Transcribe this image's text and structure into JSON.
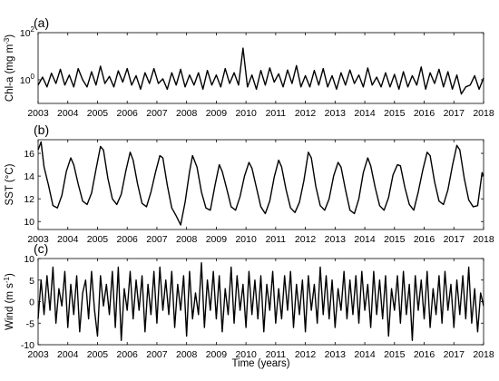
{
  "xlabel": "Time (years)",
  "chart_data": [
    {
      "type": "line",
      "panel_label": "(a)",
      "ylabel_main": "Chl-a (mg m",
      "ylabel_sup": "-3",
      "ylabel_close": ")",
      "yscale": "log",
      "ylim": [
        0.1,
        100
      ],
      "yticks": [
        {
          "value": 100,
          "base": "10",
          "exp": "2"
        },
        {
          "value": 1,
          "base": "10",
          "exp": "0"
        }
      ],
      "xlim": [
        2003.0,
        2018.0
      ],
      "xticks": [
        "2003",
        "2004",
        "2005",
        "2006",
        "2007",
        "2008",
        "2009",
        "2010",
        "2011",
        "2012",
        "2013",
        "2014",
        "2015",
        "2016",
        "2017",
        "2018"
      ],
      "series": [
        {
          "color": "#000000",
          "x": [
            2003.0,
            2003.15,
            2003.3,
            2003.45,
            2003.6,
            2003.75,
            2003.9,
            2004.05,
            2004.2,
            2004.35,
            2004.5,
            2004.65,
            2004.8,
            2004.95,
            2005.1,
            2005.25,
            2005.4,
            2005.55,
            2005.7,
            2005.85,
            2006.0,
            2006.15,
            2006.3,
            2006.45,
            2006.6,
            2006.75,
            2006.9,
            2007.05,
            2007.2,
            2007.35,
            2007.5,
            2007.65,
            2007.8,
            2007.95,
            2008.1,
            2008.25,
            2008.4,
            2008.55,
            2008.7,
            2008.85,
            2009.0,
            2009.15,
            2009.3,
            2009.45,
            2009.6,
            2009.75,
            2009.9,
            2010.05,
            2010.2,
            2010.35,
            2010.5,
            2010.65,
            2010.8,
            2010.95,
            2011.1,
            2011.25,
            2011.4,
            2011.55,
            2011.7,
            2011.85,
            2012.0,
            2012.15,
            2012.3,
            2012.45,
            2012.6,
            2012.75,
            2012.9,
            2013.05,
            2013.2,
            2013.35,
            2013.5,
            2013.65,
            2013.8,
            2013.95,
            2014.1,
            2014.25,
            2014.4,
            2014.55,
            2014.7,
            2014.85,
            2015.0,
            2015.15,
            2015.3,
            2015.45,
            2015.6,
            2015.75,
            2015.9,
            2016.05,
            2016.2,
            2016.35,
            2016.5,
            2016.65,
            2016.8,
            2016.95,
            2017.1,
            2017.25,
            2017.4,
            2017.55,
            2017.7,
            2017.85,
            2018.0
          ],
          "y": [
            0.6,
            1.3,
            0.5,
            1.9,
            0.7,
            2.8,
            0.6,
            1.6,
            0.5,
            3.0,
            1.0,
            0.5,
            2.2,
            0.6,
            3.8,
            0.7,
            1.4,
            0.5,
            2.4,
            0.8,
            3.0,
            0.6,
            1.5,
            0.4,
            2.0,
            0.7,
            3.0,
            0.7,
            1.1,
            0.4,
            2.0,
            0.6,
            2.8,
            0.5,
            1.6,
            0.6,
            2.0,
            0.4,
            2.5,
            0.6,
            1.6,
            0.5,
            3.0,
            0.7,
            2.0,
            0.6,
            22.0,
            0.5,
            1.6,
            0.4,
            2.5,
            0.6,
            3.2,
            0.8,
            1.8,
            0.5,
            2.6,
            0.7,
            4.0,
            0.5,
            1.5,
            0.5,
            2.5,
            0.6,
            3.0,
            0.5,
            1.5,
            0.4,
            2.0,
            0.6,
            2.6,
            0.7,
            1.6,
            0.5,
            3.2,
            0.6,
            1.3,
            0.5,
            2.0,
            0.5,
            1.7,
            0.4,
            2.2,
            0.5,
            1.5,
            0.6,
            3.5,
            0.4,
            2.0,
            0.7,
            2.8,
            0.5,
            2.2,
            0.4,
            1.6,
            0.25,
            0.5,
            0.6,
            1.5,
            0.4,
            1.2
          ]
        }
      ]
    },
    {
      "type": "line",
      "panel_label": "(b)",
      "ylabel_main": "SST (°C)",
      "ylim": [
        9.3,
        17.2
      ],
      "yticks": [
        10,
        12,
        14,
        16
      ],
      "xlim": [
        2003.0,
        2018.0
      ],
      "xticks": [
        "2003",
        "2004",
        "2005",
        "2006",
        "2007",
        "2008",
        "2009",
        "2010",
        "2011",
        "2012",
        "2013",
        "2014",
        "2015",
        "2016",
        "2017",
        "2018"
      ],
      "series": [
        {
          "color": "#000000",
          "x": [
            2003.0,
            2003.1,
            2003.2,
            2003.35,
            2003.5,
            2003.65,
            2003.8,
            2003.95,
            2004.1,
            2004.2,
            2004.35,
            2004.5,
            2004.65,
            2004.8,
            2004.95,
            2005.1,
            2005.2,
            2005.35,
            2005.5,
            2005.65,
            2005.8,
            2005.95,
            2006.1,
            2006.2,
            2006.35,
            2006.5,
            2006.65,
            2006.8,
            2006.95,
            2007.1,
            2007.2,
            2007.35,
            2007.5,
            2007.65,
            2007.8,
            2007.95,
            2008.1,
            2008.2,
            2008.35,
            2008.5,
            2008.65,
            2008.8,
            2008.95,
            2009.1,
            2009.2,
            2009.35,
            2009.5,
            2009.65,
            2009.8,
            2009.95,
            2010.1,
            2010.2,
            2010.35,
            2010.5,
            2010.65,
            2010.8,
            2010.95,
            2011.1,
            2011.2,
            2011.35,
            2011.5,
            2011.65,
            2011.8,
            2011.95,
            2012.1,
            2012.2,
            2012.35,
            2012.5,
            2012.65,
            2012.8,
            2012.95,
            2013.1,
            2013.2,
            2013.35,
            2013.5,
            2013.65,
            2013.8,
            2013.95,
            2014.1,
            2014.2,
            2014.35,
            2014.5,
            2014.65,
            2014.8,
            2014.95,
            2015.1,
            2015.2,
            2015.35,
            2015.5,
            2015.65,
            2015.8,
            2015.95,
            2016.1,
            2016.2,
            2016.35,
            2016.5,
            2016.65,
            2016.8,
            2016.95,
            2017.1,
            2017.2,
            2017.35,
            2017.5,
            2017.65,
            2017.8,
            2017.95,
            2018.0
          ],
          "y": [
            16.3,
            17.0,
            14.8,
            13.2,
            11.4,
            11.2,
            12.3,
            14.4,
            15.6,
            15.0,
            13.3,
            11.8,
            11.5,
            12.5,
            14.6,
            16.6,
            16.3,
            13.8,
            12.0,
            11.5,
            12.4,
            14.4,
            16.1,
            15.4,
            13.3,
            11.6,
            11.3,
            12.6,
            14.3,
            15.8,
            15.6,
            13.2,
            11.2,
            10.5,
            9.7,
            11.7,
            14.4,
            15.8,
            14.8,
            12.6,
            11.2,
            11.0,
            13.1,
            15.0,
            14.4,
            12.9,
            11.3,
            11.0,
            12.2,
            14.0,
            15.2,
            14.7,
            13.0,
            11.3,
            10.7,
            11.8,
            13.9,
            15.4,
            14.8,
            12.8,
            11.2,
            10.8,
            11.7,
            13.6,
            16.1,
            15.6,
            13.1,
            11.4,
            11.0,
            12.0,
            14.0,
            15.2,
            14.8,
            12.8,
            11.0,
            10.7,
            12.0,
            14.3,
            15.6,
            14.9,
            13.0,
            11.4,
            11.0,
            12.1,
            14.1,
            15.0,
            14.9,
            13.0,
            11.5,
            11.0,
            12.6,
            14.5,
            16.1,
            15.8,
            13.5,
            11.8,
            11.5,
            12.8,
            14.9,
            16.7,
            16.3,
            13.8,
            11.9,
            11.3,
            11.4,
            14.3,
            14.0
          ]
        }
      ]
    },
    {
      "type": "line",
      "panel_label": "(c)",
      "ylabel_main": "Wind (m s",
      "ylabel_sup": "-1",
      "ylabel_close": ")",
      "ylim": [
        -10,
        10
      ],
      "yticks": [
        -10,
        -5,
        0,
        5,
        10
      ],
      "xlim": [
        2003.0,
        2018.0
      ],
      "xticks": [
        "2003",
        "2004",
        "2005",
        "2006",
        "2007",
        "2008",
        "2009",
        "2010",
        "2011",
        "2012",
        "2013",
        "2014",
        "2015",
        "2016",
        "2017",
        "2018"
      ],
      "series": [
        {
          "color": "#000000",
          "x": [
            2003.0,
            2003.1,
            2003.2,
            2003.3,
            2003.4,
            2003.5,
            2003.6,
            2003.7,
            2003.8,
            2003.9,
            2004.0,
            2004.1,
            2004.2,
            2004.3,
            2004.4,
            2004.5,
            2004.6,
            2004.7,
            2004.8,
            2004.9,
            2005.0,
            2005.1,
            2005.2,
            2005.3,
            2005.4,
            2005.5,
            2005.6,
            2005.7,
            2005.8,
            2005.9,
            2006.0,
            2006.1,
            2006.2,
            2006.3,
            2006.4,
            2006.5,
            2006.6,
            2006.7,
            2006.8,
            2006.9,
            2007.0,
            2007.1,
            2007.2,
            2007.3,
            2007.4,
            2007.5,
            2007.6,
            2007.7,
            2007.8,
            2007.9,
            2008.0,
            2008.1,
            2008.2,
            2008.3,
            2008.4,
            2008.5,
            2008.6,
            2008.7,
            2008.8,
            2008.9,
            2009.0,
            2009.1,
            2009.2,
            2009.3,
            2009.4,
            2009.5,
            2009.6,
            2009.7,
            2009.8,
            2009.9,
            2010.0,
            2010.1,
            2010.2,
            2010.3,
            2010.4,
            2010.5,
            2010.6,
            2010.7,
            2010.8,
            2010.9,
            2011.0,
            2011.1,
            2011.2,
            2011.3,
            2011.4,
            2011.5,
            2011.6,
            2011.7,
            2011.8,
            2011.9,
            2012.0,
            2012.1,
            2012.2,
            2012.3,
            2012.4,
            2012.5,
            2012.6,
            2012.7,
            2012.8,
            2012.9,
            2013.0,
            2013.1,
            2013.2,
            2013.3,
            2013.4,
            2013.5,
            2013.6,
            2013.7,
            2013.8,
            2013.9,
            2014.0,
            2014.1,
            2014.2,
            2014.3,
            2014.4,
            2014.5,
            2014.6,
            2014.7,
            2014.8,
            2014.9,
            2015.0,
            2015.1,
            2015.2,
            2015.3,
            2015.4,
            2015.5,
            2015.6,
            2015.7,
            2015.8,
            2015.9,
            2016.0,
            2016.1,
            2016.2,
            2016.3,
            2016.4,
            2016.5,
            2016.6,
            2016.7,
            2016.8,
            2016.9,
            2017.0,
            2017.1,
            2017.2,
            2017.3,
            2017.4,
            2017.5,
            2017.6,
            2017.7,
            2017.8,
            2017.9,
            2018.0
          ],
          "y": [
            -4,
            5,
            -3,
            6,
            -2,
            8,
            -5,
            3,
            -1,
            7,
            -6,
            4,
            -3,
            6,
            -7,
            2,
            5,
            -4,
            7,
            -2,
            -8,
            6,
            -1,
            4,
            -3,
            7,
            -6,
            8,
            -9,
            3,
            -2,
            7,
            -4,
            5,
            -2,
            6,
            -7,
            4,
            -3,
            7,
            -5,
            8,
            -2,
            5,
            -3,
            7,
            -6,
            4,
            -2,
            6,
            -8,
            7,
            -4,
            2,
            -3,
            9,
            -6,
            5,
            -2,
            7,
            -4,
            6,
            -7,
            3,
            -3,
            8,
            -5,
            6,
            -2,
            4,
            -6,
            7,
            -3,
            5,
            -4,
            6,
            -7,
            4,
            -2,
            7,
            -5,
            3,
            -4,
            6,
            -2,
            7,
            -6,
            4,
            -3,
            5,
            -7,
            6,
            -2,
            4,
            -5,
            8,
            -3,
            6,
            -4,
            5,
            -6,
            3,
            -2,
            7,
            -4,
            5,
            -3,
            6,
            -5,
            7,
            -2,
            4,
            -6,
            7,
            -3,
            5,
            -4,
            6,
            -8,
            3,
            -2,
            6,
            -5,
            7,
            -3,
            4,
            -9,
            6,
            -2,
            5,
            -4,
            7,
            -6,
            3,
            -3,
            6,
            -5,
            7,
            -2,
            4,
            -6,
            5,
            -3,
            6,
            -4,
            8,
            -5,
            3,
            -7,
            2,
            -1
          ]
        }
      ]
    }
  ]
}
